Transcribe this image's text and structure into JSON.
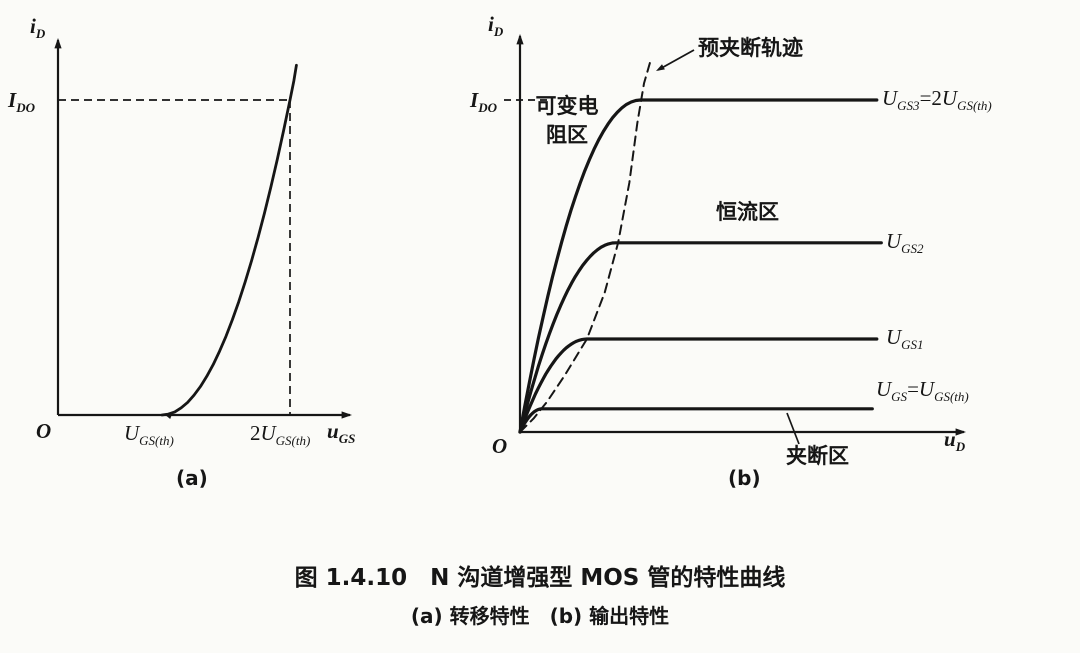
{
  "figure": {
    "caption_line1": "图 1.4.10　N 沟道增强型 MOS 管的特性曲线",
    "caption_line2": "(a) 转移特性　(b) 输出特性"
  },
  "plot_a": {
    "sublabel": "(a)",
    "origin": "O",
    "labels": {
      "y_axis": [
        {
          "t": "i"
        },
        {
          "s": "D"
        }
      ],
      "x_axis": [
        {
          "t": "u"
        },
        {
          "s": "GS"
        }
      ],
      "ido": [
        {
          "t": "I"
        },
        {
          "s": "DO"
        }
      ],
      "tick1": [
        {
          "t": "U"
        },
        {
          "s": "GS(th)"
        }
      ],
      "tick2": [
        {
          "n": "2"
        },
        {
          "t": "U"
        },
        {
          "s": "GS(th)"
        }
      ]
    }
  },
  "plot_b": {
    "sublabel": "(b)",
    "origin": "O",
    "labels": {
      "y_axis": [
        {
          "t": "i"
        },
        {
          "s": "D"
        }
      ],
      "x_axis": [
        {
          "t": "u"
        },
        {
          "s": "D"
        }
      ],
      "ido": [
        {
          "t": "I"
        },
        {
          "s": "DO"
        }
      ],
      "curve1": [
        {
          "t": "U"
        },
        {
          "s": "GS3"
        },
        {
          "n": "=2"
        },
        {
          "t": "U"
        },
        {
          "s": "GS(th)"
        }
      ],
      "curve2": [
        {
          "t": "U"
        },
        {
          "s": "GS2"
        }
      ],
      "curve3": [
        {
          "t": "U"
        },
        {
          "s": "GS1"
        }
      ],
      "curve4": [
        {
          "t": "U"
        },
        {
          "s": "GS"
        },
        {
          "n": "="
        },
        {
          "t": "U"
        },
        {
          "s": "GS(th)"
        }
      ]
    },
    "annotations": {
      "prepinch_locus": "预夹断轨迹",
      "variable_resistance_region_line1": "可变电",
      "variable_resistance_region_line2": "阻区",
      "constant_current_region": "恒流区",
      "pinchoff_region": "夹断区"
    }
  },
  "chart_data": [
    {
      "id": "a",
      "type": "line",
      "title": "转移特性 (transfer characteristic)",
      "xlabel": "u_GS",
      "ylabel": "i_D",
      "x_ticks": [
        "U_GS(th)",
        "2U_GS(th)"
      ],
      "y_refs": [
        "I_DO"
      ],
      "x_units": "multiples of U_GS(th)",
      "y_units": "multiples of I_DO",
      "grid": false,
      "dashed_guides": {
        "i_level": 1,
        "u_level": 2
      },
      "series": [
        {
          "name": "i_D = f(u_GS)",
          "relation": "i_D ≈ I_DO·(u_GS/U_GS(th) − 1)²",
          "points": [
            [
              1,
              0
            ],
            [
              1.05,
              0.003
            ],
            [
              1.1,
              0.01
            ],
            [
              1.15,
              0.023
            ],
            [
              1.2,
              0.04
            ],
            [
              1.25,
              0.063
            ],
            [
              1.3,
              0.09
            ],
            [
              1.35,
              0.123
            ],
            [
              1.4,
              0.16
            ],
            [
              1.45,
              0.203
            ],
            [
              1.5,
              0.25
            ],
            [
              1.55,
              0.303
            ],
            [
              1.6,
              0.36
            ],
            [
              1.65,
              0.423
            ],
            [
              1.7,
              0.49
            ],
            [
              1.75,
              0.563
            ],
            [
              1.8,
              0.64
            ],
            [
              1.85,
              0.723
            ],
            [
              1.9,
              0.81
            ],
            [
              1.95,
              0.903
            ],
            [
              2,
              1
            ],
            [
              2.03,
              1.06
            ],
            [
              2.05,
              1.11
            ]
          ]
        }
      ]
    },
    {
      "id": "b",
      "type": "line",
      "title": "输出特性 (output characteristic)",
      "xlabel": "u_D",
      "ylabel": "i_D",
      "y_refs": [
        "I_DO"
      ],
      "x_units": "fraction of shown axis",
      "y_units": "multiples of I_DO",
      "grid": false,
      "series": [
        {
          "name": "U_GS3 = 2U_GS(th)",
          "sat": 1.0,
          "knee": 0.27,
          "end": 0.8
        },
        {
          "name": "U_GS2",
          "sat": 0.57,
          "knee": 0.215,
          "end": 0.81
        },
        {
          "name": "U_GS1",
          "sat": 0.28,
          "knee": 0.15,
          "end": 0.8
        },
        {
          "name": "U_GS = U_GS(th)",
          "sat": 0.07,
          "knee": 0.05,
          "end": 0.79
        }
      ],
      "prepinch_locus": [
        [
          0,
          0
        ],
        [
          0.03,
          0.04
        ],
        [
          0.06,
          0.09
        ],
        [
          0.1,
          0.17
        ],
        [
          0.15,
          0.28
        ],
        [
          0.19,
          0.42
        ],
        [
          0.22,
          0.57
        ],
        [
          0.245,
          0.75
        ],
        [
          0.263,
          0.93
        ],
        [
          0.278,
          1.05
        ],
        [
          0.293,
          1.12
        ]
      ],
      "regions": [
        "可变电阻区",
        "恒流区",
        "夹断区"
      ],
      "locus_label": "预夹断轨迹 (dashed)"
    }
  ]
}
